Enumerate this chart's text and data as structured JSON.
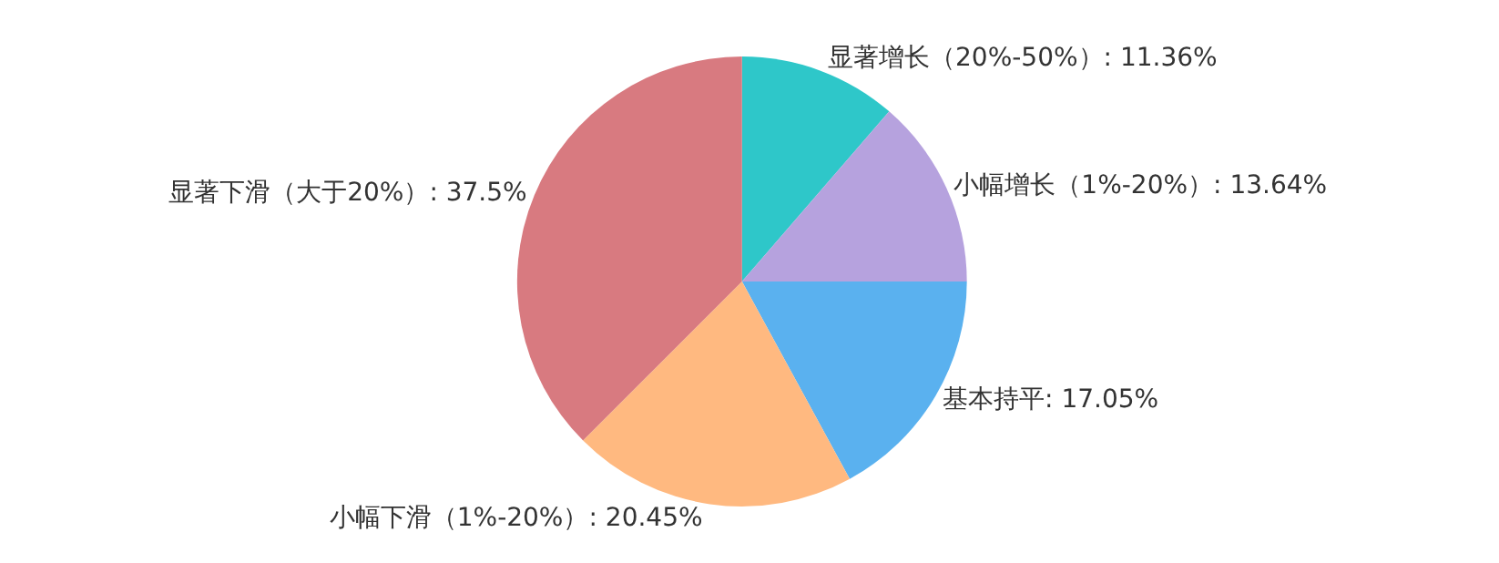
{
  "chart_data": {
    "type": "pie",
    "categories": [
      "显著增长（20%-50%）",
      "小幅增长（1%-20%）",
      "基本持平",
      "小幅下滑（1%-20%）",
      "显著下滑（大于20%）"
    ],
    "values": [
      11.36,
      13.64,
      17.05,
      20.45,
      37.5
    ],
    "colors": [
      "#2ec7c9",
      "#b6a2de",
      "#5ab1ef",
      "#ffb980",
      "#d87a80"
    ],
    "value_labels": [
      "11.36%",
      "13.64%",
      "17.05%",
      "20.45%",
      "37.5%"
    ],
    "legend": false
  }
}
